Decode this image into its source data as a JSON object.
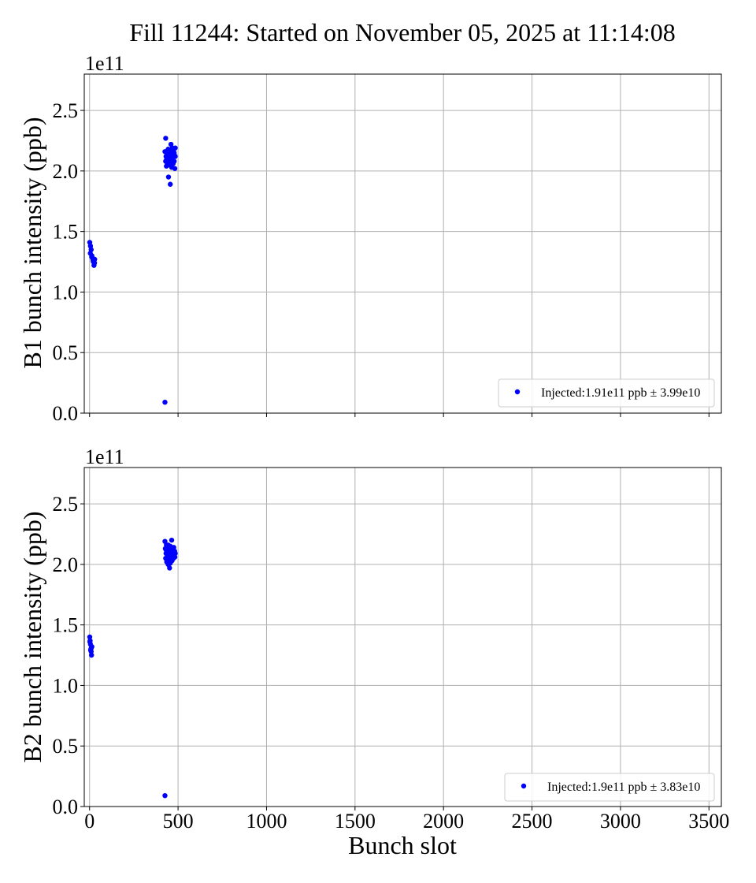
{
  "figure_title": "Fill 11244: Started on November 05, 2025 at 11:14:08",
  "chart_data": [
    {
      "type": "scatter",
      "title": "",
      "xlabel": "",
      "ylabel": "B1 bunch intensity (ppb)",
      "offset_text": "1e11",
      "xlim": [
        -30,
        3570
      ],
      "ylim": [
        0.0,
        2.8
      ],
      "x_ticks": [
        0,
        500,
        1000,
        1500,
        2000,
        2500,
        3000,
        3500
      ],
      "x_tick_labels_visible": false,
      "y_ticks": [
        0.0,
        0.5,
        1.0,
        1.5,
        2.0,
        2.5
      ],
      "y_tick_labels": [
        "0.0",
        "0.5",
        "1.0",
        "1.5",
        "2.0",
        "2.5"
      ],
      "grid": true,
      "legend_position": "lower-right",
      "marker_color": "#0000ff",
      "series": [
        {
          "name": "Injected:1.91e11 ppb ± 3.99e10",
          "x": [
            1,
            5,
            9,
            13,
            17,
            21,
            25,
            29,
            4,
            12,
            20,
            28,
            426,
            426,
            430,
            432,
            434,
            436,
            438,
            440,
            442,
            444,
            446,
            448,
            450,
            452,
            454,
            456,
            458,
            460,
            462,
            464,
            466,
            468,
            470,
            472,
            474,
            476,
            478,
            480,
            482,
            484,
            430,
            436,
            442,
            448,
            454,
            460,
            466,
            472,
            478,
            484
          ],
          "y": [
            1.41,
            1.38,
            1.35,
            1.3,
            1.28,
            1.25,
            1.22,
            1.27,
            1.32,
            1.29,
            1.26,
            1.24,
            0.09,
            2.16,
            2.27,
            2.12,
            2.04,
            2.1,
            2.14,
            2.06,
            2.08,
            2.18,
            1.95,
            2.11,
            2.09,
            2.05,
            2.13,
            1.89,
            2.07,
            2.22,
            2.12,
            2.03,
            2.15,
            2.19,
            2.1,
            2.06,
            2.17,
            2.12,
            2.08,
            2.13,
            2.02,
            2.19,
            2.08,
            2.11,
            2.05,
            2.14,
            2.09,
            2.16,
            2.1,
            2.07,
            2.15,
            2.12
          ]
        }
      ]
    },
    {
      "type": "scatter",
      "title": "",
      "xlabel": "Bunch slot",
      "ylabel": "B2 bunch intensity (ppb)",
      "offset_text": "1e11",
      "xlim": [
        -30,
        3570
      ],
      "ylim": [
        0.0,
        2.8
      ],
      "x_ticks": [
        0,
        500,
        1000,
        1500,
        2000,
        2500,
        3000,
        3500
      ],
      "x_tick_labels": [
        "0",
        "500",
        "1000",
        "1500",
        "2000",
        "2500",
        "3000",
        "3500"
      ],
      "x_tick_labels_visible": true,
      "y_ticks": [
        0.0,
        0.5,
        1.0,
        1.5,
        2.0,
        2.5
      ],
      "y_tick_labels": [
        "0.0",
        "0.5",
        "1.0",
        "1.5",
        "2.0",
        "2.5"
      ],
      "grid": true,
      "legend_position": "lower-right",
      "marker_color": "#0000ff",
      "series": [
        {
          "name": "Injected:1.9e11 ppb ± 3.83e10",
          "x": [
            1,
            3,
            5,
            7,
            9,
            11,
            13,
            2,
            6,
            10,
            426,
            426,
            428,
            430,
            432,
            434,
            436,
            438,
            440,
            442,
            444,
            446,
            448,
            450,
            452,
            454,
            456,
            458,
            460,
            462,
            464,
            466,
            468,
            470,
            472,
            474,
            476,
            478,
            480,
            482,
            484,
            432,
            438,
            444,
            450,
            456,
            462,
            468,
            474,
            480
          ],
          "y": [
            1.4,
            1.37,
            1.34,
            1.3,
            1.28,
            1.25,
            1.32,
            1.36,
            1.29,
            1.31,
            0.09,
            2.19,
            2.13,
            2.05,
            2.09,
            2.16,
            2.02,
            2.11,
            2.07,
            2.14,
            2.0,
            2.1,
            2.06,
            2.12,
            1.97,
            2.08,
            2.15,
            2.04,
            2.11,
            2.09,
            2.2,
            2.03,
            2.12,
            2.07,
            2.1,
            2.05,
            2.14,
            2.08,
            2.11,
            2.06,
            2.09,
            2.12,
            2.04,
            2.16,
            2.08,
            2.01,
            2.1,
            2.13,
            2.06,
            2.11
          ]
        }
      ]
    }
  ]
}
